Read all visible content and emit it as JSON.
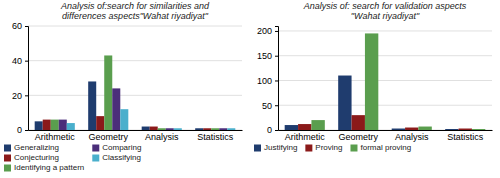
{
  "chart_data": [
    {
      "type": "bar",
      "title": "Analysis of:search for similarities and\ndifferences aspects\"Wahat riyadiyat\"",
      "categories": [
        "Arithmetic",
        "Geometry",
        "Analysis",
        "Statistics"
      ],
      "series": [
        {
          "name": "Generalizing",
          "color": "#1F3C6E",
          "values": [
            5,
            28,
            2,
            1
          ]
        },
        {
          "name": "Conjecturing",
          "color": "#8B1A1A",
          "values": [
            6,
            8,
            2,
            1
          ]
        },
        {
          "name": "Identifying a pattern",
          "color": "#5A9E4E",
          "values": [
            6,
            43,
            1,
            1
          ]
        },
        {
          "name": "Comparing",
          "color": "#4B2E7A",
          "values": [
            6,
            24,
            1,
            1
          ]
        },
        {
          "name": "Classifying",
          "color": "#4AAFCC",
          "values": [
            4,
            12,
            1,
            1
          ]
        }
      ],
      "ylim": [
        0,
        60
      ],
      "yticks": [
        0,
        20,
        40,
        60
      ],
      "grid": true,
      "legend": "bottom"
    },
    {
      "type": "bar",
      "title": "Analysis of: search for validation aspects\n\"Wahat riyadiyat\"",
      "categories": [
        "Arithmetic",
        "Geometry",
        "Analysis",
        "Statistics"
      ],
      "series": [
        {
          "name": "Justifying",
          "color": "#1F3C6E",
          "values": [
            10,
            110,
            3,
            2
          ]
        },
        {
          "name": "Proving",
          "color": "#8B1A1A",
          "values": [
            12,
            30,
            5,
            3
          ]
        },
        {
          "name": "formal proving",
          "color": "#5A9E4E",
          "values": [
            20,
            195,
            7,
            2
          ]
        }
      ],
      "ylim": [
        0,
        210
      ],
      "yticks": [
        0,
        50,
        100,
        150,
        200
      ],
      "grid": true,
      "legend": "bottom"
    }
  ]
}
